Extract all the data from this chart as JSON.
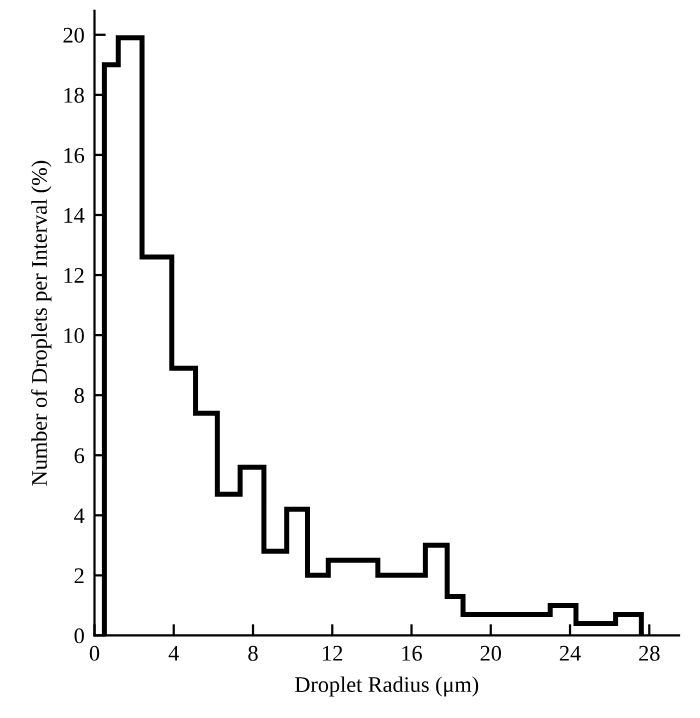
{
  "chart_data": {
    "type": "histogram",
    "xlabel": "Droplet Radius (μm)",
    "ylabel": "Number of Droplets per Interval (%)",
    "bins": [
      0.5,
      1.2,
      2.4,
      3.9,
      5.1,
      6.2,
      7.35,
      8.55,
      9.7,
      10.75,
      11.8,
      14.3,
      16.7,
      17.8,
      18.6,
      23.0,
      24.3,
      26.3,
      27.6
    ],
    "values": [
      19,
      19.9,
      12.6,
      8.9,
      7.4,
      4.7,
      5.6,
      2.8,
      4.2,
      2.0,
      2.5,
      2.0,
      3.0,
      1.3,
      0.7,
      1.0,
      0.4,
      0.7
    ],
    "color": "#000000",
    "xlim": [
      0,
      29.5
    ],
    "ylim": [
      0,
      20.8
    ],
    "xticks": [
      0,
      4,
      8,
      12,
      16,
      20,
      24,
      28
    ],
    "yticks": [
      0,
      2,
      4,
      6,
      8,
      10,
      12,
      14,
      16,
      18,
      20
    ],
    "grid": false
  }
}
